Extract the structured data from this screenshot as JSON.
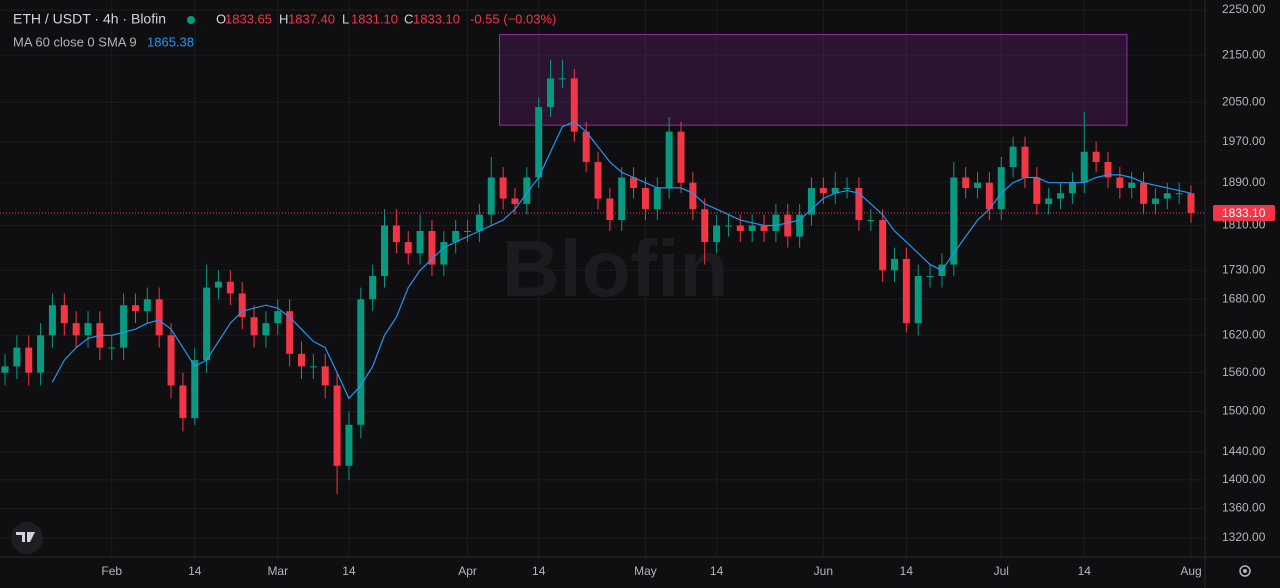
{
  "chart_data": {
    "type": "candlestick",
    "title": "ETH / USDT · 4h · Blofin",
    "ohlc_legend": [
      {
        "name": "O",
        "value": 1833.65
      },
      {
        "name": "H",
        "value": {
          "value": 1837.4,
          "label": "1837.40"
        }
      },
      {
        "name": "L",
        "value": {
          "value": 1831.1,
          "label": "1831.10"
        }
      },
      {
        "name": "C",
        "value": {
          "value": 1833.1,
          "label": "1833.10"
        }
      }
    ],
    "change": "-0.55 (−0.03%)",
    "watermark": "Blofin",
    "up_color": "#089981",
    "down_color": "#f23645",
    "categories": [
      null,
      null,
      null,
      null,
      null,
      null,
      null,
      null,
      null,
      "Feb",
      null,
      null,
      null,
      null,
      null,
      null,
      "14",
      null,
      null,
      null,
      null,
      null,
      null,
      "Mar",
      null,
      null,
      null,
      null,
      null,
      "14",
      null,
      null,
      null,
      null,
      null,
      null,
      null,
      null,
      null,
      "Apr",
      null,
      null,
      null,
      null,
      null,
      "14",
      null,
      null,
      null,
      null,
      null,
      null,
      null,
      null,
      "May",
      null,
      null,
      null,
      null,
      null,
      "14",
      null,
      null,
      null,
      null,
      null,
      null,
      null,
      null,
      "Jun",
      null,
      null,
      null,
      null,
      null,
      null,
      "14",
      null,
      null,
      null,
      null,
      null,
      null,
      null,
      "Jul",
      null,
      null,
      null,
      null,
      null,
      null,
      "14",
      null,
      null,
      null,
      null,
      null,
      null,
      null,
      null,
      "Aug"
    ],
    "open": [
      1560,
      1570,
      1600,
      1560,
      1620,
      1670,
      1640,
      1620,
      1640,
      1600,
      1600,
      1670,
      1660,
      1680,
      1620,
      1540,
      1490,
      1580,
      1700,
      1710,
      1690,
      1650,
      1620,
      1640,
      1660,
      1590,
      1570,
      1570,
      1540,
      1420,
      1480,
      1680,
      1720,
      1810,
      1780,
      1760,
      1800,
      1740,
      1780,
      1800,
      1800,
      1830,
      1900,
      1860,
      1850,
      1900,
      2040,
      2100,
      2100,
      1990,
      1930,
      1860,
      1820,
      1900,
      1880,
      1840,
      1880,
      1990,
      1890,
      1840,
      1780,
      1810,
      1810,
      1800,
      1810,
      1800,
      1830,
      1790,
      1830,
      1880,
      1870,
      1880,
      1880,
      1820,
      1820,
      1730,
      1750,
      1640,
      1720,
      1720,
      1740,
      1900,
      1880,
      1890,
      1840,
      1920,
      1960,
      1900,
      1850,
      1860,
      1870,
      1890,
      1950,
      1930,
      1900,
      1880,
      1890,
      1850,
      1860,
      1870,
      1870
    ],
    "high": [
      1590,
      1620,
      1620,
      1640,
      1690,
      1690,
      1660,
      1660,
      1660,
      1620,
      1690,
      1690,
      1700,
      1700,
      1640,
      1560,
      1600,
      1740,
      1730,
      1730,
      1710,
      1670,
      1660,
      1680,
      1680,
      1610,
      1590,
      1590,
      1560,
      1500,
      1700,
      1740,
      1840,
      1840,
      1800,
      1830,
      1820,
      1800,
      1820,
      1820,
      1850,
      1940,
      1920,
      1880,
      1920,
      2060,
      2140,
      2140,
      2120,
      2010,
      1950,
      1880,
      1920,
      1920,
      1900,
      1900,
      2020,
      2010,
      1910,
      1860,
      1830,
      1830,
      1830,
      1830,
      1830,
      1850,
      1850,
      1850,
      1900,
      1900,
      1910,
      1900,
      1900,
      1840,
      1840,
      1770,
      1770,
      1740,
      1740,
      1760,
      1930,
      1920,
      1910,
      1910,
      1940,
      1980,
      1980,
      1920,
      1880,
      1890,
      1910,
      2030,
      1970,
      1950,
      1920,
      1910,
      1910,
      1880,
      1890,
      1890,
      1885
    ],
    "low": [
      1540,
      1550,
      1540,
      1540,
      1600,
      1620,
      1600,
      1600,
      1580,
      1580,
      1580,
      1640,
      1640,
      1600,
      1520,
      1470,
      1480,
      1560,
      1680,
      1670,
      1630,
      1600,
      1600,
      1620,
      1570,
      1550,
      1550,
      1520,
      1380,
      1400,
      1460,
      1660,
      1700,
      1760,
      1740,
      1740,
      1720,
      1720,
      1760,
      1780,
      1780,
      1810,
      1840,
      1830,
      1830,
      1880,
      2020,
      2080,
      1970,
      1910,
      1840,
      1800,
      1800,
      1860,
      1820,
      1820,
      1860,
      1870,
      1820,
      1740,
      1760,
      1790,
      1780,
      1780,
      1780,
      1780,
      1770,
      1770,
      1810,
      1850,
      1850,
      1860,
      1800,
      1800,
      1710,
      1710,
      1625,
      1620,
      1700,
      1700,
      1720,
      1860,
      1860,
      1820,
      1820,
      1900,
      1880,
      1830,
      1830,
      1840,
      1850,
      1870,
      1910,
      1880,
      1860,
      1860,
      1830,
      1830,
      1840,
      1850,
      1815
    ],
    "close": [
      1570,
      1600,
      1560,
      1620,
      1670,
      1640,
      1620,
      1640,
      1600,
      1600,
      1670,
      1660,
      1680,
      1620,
      1540,
      1490,
      1580,
      1700,
      1710,
      1690,
      1650,
      1620,
      1640,
      1660,
      1590,
      1570,
      1570,
      1540,
      1420,
      1480,
      1680,
      1720,
      1810,
      1780,
      1760,
      1800,
      1740,
      1780,
      1800,
      1800,
      1830,
      1900,
      1860,
      1850,
      1900,
      2040,
      2100,
      2100,
      1990,
      1930,
      1860,
      1820,
      1900,
      1880,
      1840,
      1880,
      1990,
      1890,
      1840,
      1780,
      1810,
      1810,
      1800,
      1810,
      1800,
      1830,
      1790,
      1830,
      1880,
      1870,
      1880,
      1880,
      1820,
      1820,
      1730,
      1750,
      1640,
      1720,
      1720,
      1740,
      1900,
      1880,
      1890,
      1840,
      1920,
      1960,
      1900,
      1850,
      1860,
      1870,
      1890,
      1950,
      1930,
      1900,
      1880,
      1890,
      1850,
      1860,
      1870,
      1870,
      1833.1
    ],
    "ma": {
      "name": "MA 60 close 0 SMA 9",
      "value": 1865.38,
      "color": "#2196f3",
      "values": [
        null,
        null,
        null,
        null,
        1545,
        1580,
        1600,
        1615,
        1620,
        1620,
        1625,
        1630,
        1640,
        1645,
        1630,
        1600,
        1570,
        1580,
        1610,
        1640,
        1660,
        1665,
        1670,
        1665,
        1650,
        1630,
        1610,
        1600,
        1560,
        1520,
        1540,
        1570,
        1620,
        1650,
        1700,
        1730,
        1750,
        1770,
        1780,
        1790,
        1800,
        1810,
        1820,
        1840,
        1870,
        1900,
        1950,
        2000,
        2010,
        1990,
        1960,
        1930,
        1910,
        1900,
        1890,
        1880,
        1880,
        1880,
        1870,
        1850,
        1840,
        1830,
        1820,
        1815,
        1810,
        1810,
        1815,
        1820,
        1840,
        1860,
        1870,
        1875,
        1870,
        1850,
        1830,
        1800,
        1780,
        1760,
        1740,
        1730,
        1760,
        1790,
        1820,
        1840,
        1870,
        1890,
        1900,
        1900,
        1890,
        1890,
        1890,
        1890,
        1900,
        1905,
        1905,
        1900,
        1890,
        1885,
        1880,
        1875,
        1870
      ]
    },
    "zone": {
      "start": 41.7,
      "end": 94.6,
      "high": 2195,
      "low": 2003,
      "color": "#9c27b0"
    },
    "last_price": {
      "value": 1833.1,
      "label": "1833.10"
    },
    "ylim": [
      1295,
      2273
    ],
    "log": true,
    "grid": true,
    "yticks": [
      {
        "value": 2250,
        "label": "2250.00"
      },
      {
        "value": 2150,
        "label": "2150.00"
      },
      {
        "value": 2050,
        "label": "2050.00"
      },
      {
        "value": 1970,
        "label": "1970.00"
      },
      {
        "value": 1890,
        "label": "1890.00"
      },
      {
        "value": 1810,
        "label": "1810.00"
      },
      {
        "value": 1730,
        "label": "1730.00"
      },
      {
        "value": 1680,
        "label": "1680.00"
      },
      {
        "value": 1620,
        "label": "1620.00"
      },
      {
        "value": 1560,
        "label": "1560.00"
      },
      {
        "value": 1500,
        "label": "1500.00"
      },
      {
        "value": 1440,
        "label": "1440.00"
      },
      {
        "value": 1400,
        "label": "1400.00"
      },
      {
        "value": 1360,
        "label": "1360.00"
      },
      {
        "value": 1320,
        "label": "1320.00"
      }
    ]
  }
}
